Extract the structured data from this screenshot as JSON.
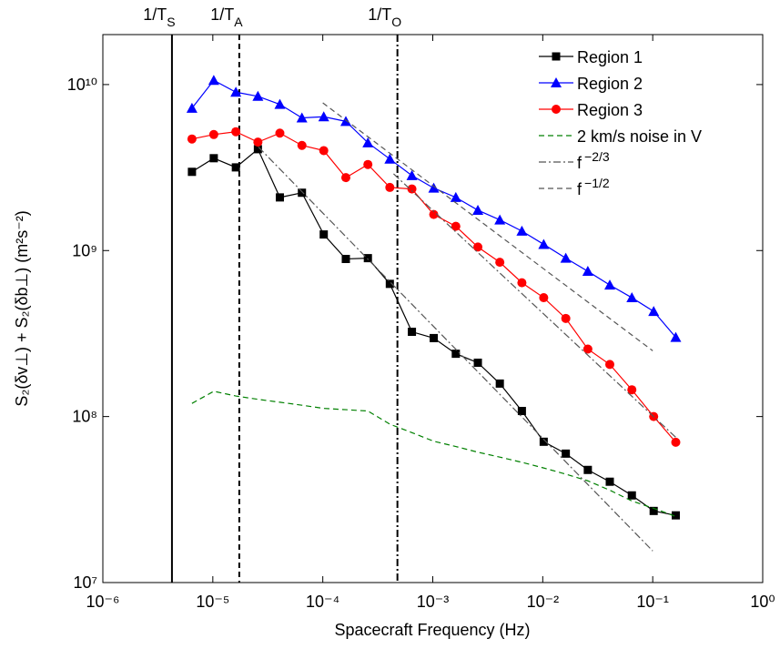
{
  "chart_data": {
    "type": "line",
    "xlabel": "Spacecraft Frequency (Hz)",
    "ylabel": "S₂(δv⊥) + S₂(δb⊥) (m²s⁻²)",
    "log_x": true,
    "log_y": true,
    "xlim": [
      1e-06,
      1
    ],
    "ylim": [
      10000000.0,
      20000000000.0
    ],
    "xticks": [
      {
        "value": 1e-06,
        "label": "10⁻⁶"
      },
      {
        "value": 1e-05,
        "label": "10⁻⁵"
      },
      {
        "value": 0.0001,
        "label": "10⁻⁴"
      },
      {
        "value": 0.001,
        "label": "10⁻³"
      },
      {
        "value": 0.01,
        "label": "10⁻²"
      },
      {
        "value": 0.1,
        "label": "10⁻¹"
      },
      {
        "value": 1,
        "label": "10⁰"
      }
    ],
    "yticks": [
      {
        "value": 10000000.0,
        "label": "10⁷"
      },
      {
        "value": 100000000.0,
        "label": "10⁸"
      },
      {
        "value": 1000000000.0,
        "label": "10⁹"
      },
      {
        "value": 10000000000.0,
        "label": "10¹⁰"
      }
    ],
    "vlines": [
      {
        "x": 4.25e-06,
        "label": "1/T",
        "sub": "S",
        "dash": "solid"
      },
      {
        "x": 1.74e-05,
        "label": "1/T",
        "sub": "A",
        "dash": "dashed"
      },
      {
        "x": 0.000477,
        "label": "1/T",
        "sub": "O",
        "dash": "dashdot"
      }
    ],
    "x": [
      6.46e-06,
      1.02e-05,
      1.62e-05,
      2.57e-05,
      4.07e-05,
      6.46e-05,
      0.000102,
      0.000162,
      0.000257,
      0.000407,
      0.000646,
      0.00102,
      0.00162,
      0.00257,
      0.00407,
      0.00646,
      0.0102,
      0.0162,
      0.0257,
      0.0407,
      0.0646,
      0.102,
      0.162
    ],
    "series": [
      {
        "name": "Region 1",
        "color": "#000000",
        "marker": "square",
        "dash": "solid",
        "values": [
          2980000000.0,
          3600000000.0,
          3170000000.0,
          4080000000.0,
          2090000000.0,
          2230000000.0,
          1250000000.0,
          890000000.0,
          900000000.0,
          630000000.0,
          324000000.0,
          297000000.0,
          239000000.0,
          211000000.0,
          158000000.0,
          108000000.0,
          70500000.0,
          59800000.0,
          47700000.0,
          40500000.0,
          33500000.0,
          27000000.0,
          25400000.0
        ]
      },
      {
        "name": "Region 2",
        "color": "#0000ff",
        "marker": "triangle",
        "dash": "solid",
        "values": [
          7200000000.0,
          10600000000.0,
          9000000000.0,
          8500000000.0,
          7600000000.0,
          6300000000.0,
          6400000000.0,
          6000000000.0,
          4460000000.0,
          3560000000.0,
          2830000000.0,
          2380000000.0,
          2090000000.0,
          1750000000.0,
          1530000000.0,
          1310000000.0,
          1090000000.0,
          900000000.0,
          750000000.0,
          620000000.0,
          520000000.0,
          430000000.0,
          300000000.0
        ]
      },
      {
        "name": "Region 3",
        "color": "#ff0000",
        "marker": "circle",
        "dash": "solid",
        "values": [
          4700000000.0,
          5000000000.0,
          5200000000.0,
          4500000000.0,
          5100000000.0,
          4300000000.0,
          4000000000.0,
          2750000000.0,
          3300000000.0,
          2400000000.0,
          2350000000.0,
          1650000000.0,
          1400000000.0,
          1050000000.0,
          850000000.0,
          640000000.0,
          520000000.0,
          390000000.0,
          255000000.0,
          206000000.0,
          145000000.0,
          100000000.0,
          70000000.0
        ]
      },
      {
        "name": "2 km/s noise in V",
        "color": "#008000",
        "dash": "dashed",
        "values": [
          120000000.0,
          142000000.0,
          133000000.0,
          127000000.0,
          122000000.0,
          117000000.0,
          112000000.0,
          110000000.0,
          108000000.0,
          90000000.0,
          80000000.0,
          71000000.0,
          66000000.0,
          61000000.0,
          57000000.0,
          53000000.0,
          49000000.0,
          45000000.0,
          41000000.0,
          36000000.0,
          31000000.0,
          28000000.0,
          25000000.0
        ]
      },
      {
        "name": "f",
        "superscript": "−2/3",
        "color": "#555555",
        "dash": "dashdot",
        "x": [
          2.6e-05,
          0.1
        ],
        "values": [
          4200000000.0,
          15500000.0
        ]
      },
      {
        "name": "f",
        "superscript": "−1/2",
        "color": "#555555",
        "dash": "dashed",
        "x": [
          0.0001,
          0.1
        ],
        "values": [
          7760000000.0,
          249000000.0
        ]
      },
      {
        "color": "#555555",
        "dash": "dashdot",
        "x": [
          0.00044,
          0.162
        ],
        "values": [
          2900000000.0,
          75000000.0
        ]
      }
    ]
  }
}
